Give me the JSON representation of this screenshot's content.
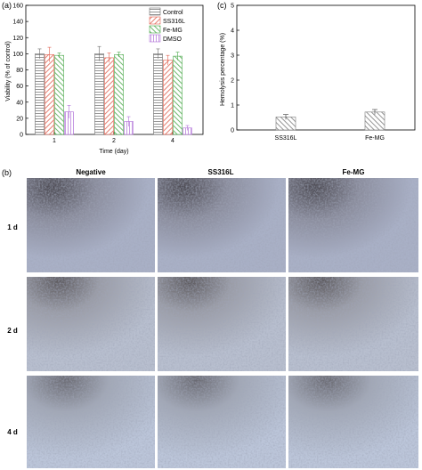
{
  "panels": {
    "a": "(a)",
    "b": "(b)",
    "c": "(c)"
  },
  "colors": {
    "control": "#6b6b6b",
    "ss316l": "#e0604f",
    "femg": "#4aa84a",
    "dmso": "#b070d8",
    "hemolysis": "#7a7a7a"
  },
  "chart_data": [
    {
      "type": "bar",
      "id": "viability",
      "categories": [
        "1",
        "2",
        "4"
      ],
      "xlabel": "Time (day)",
      "ylabel": "Viability (% of control)",
      "ylim": [
        0,
        160
      ],
      "yticks": [
        "0",
        "20",
        "40",
        "60",
        "80",
        "100",
        "120",
        "140",
        "160"
      ],
      "legend_position": "top-right",
      "series": [
        {
          "name": "Control",
          "values": [
            100,
            100,
            100
          ],
          "errors": [
            6,
            9,
            6
          ]
        },
        {
          "name": "SS316L",
          "values": [
            99,
            95,
            92
          ],
          "errors": [
            9,
            6,
            6
          ]
        },
        {
          "name": "Fe-MG",
          "values": [
            98,
            99,
            97
          ],
          "errors": [
            3,
            3,
            5
          ]
        },
        {
          "name": "DMSO",
          "values": [
            28,
            16,
            8
          ],
          "errors": [
            8,
            6,
            3
          ]
        }
      ]
    },
    {
      "type": "bar",
      "id": "hemolysis",
      "categories": [
        "SS316L",
        "Fe-MG"
      ],
      "ylabel": "Hemolysis percentage (%)",
      "ylim": [
        0,
        5
      ],
      "yticks": [
        "0",
        "1",
        "2",
        "3",
        "4",
        "5"
      ],
      "values": [
        0.52,
        0.72
      ],
      "errors": [
        0.1,
        0.1
      ]
    }
  ],
  "micrographs": {
    "columns": [
      "Negative",
      "SS316L",
      "Fe-MG"
    ],
    "rows": [
      "1 d",
      "2 d",
      "4 d"
    ]
  }
}
